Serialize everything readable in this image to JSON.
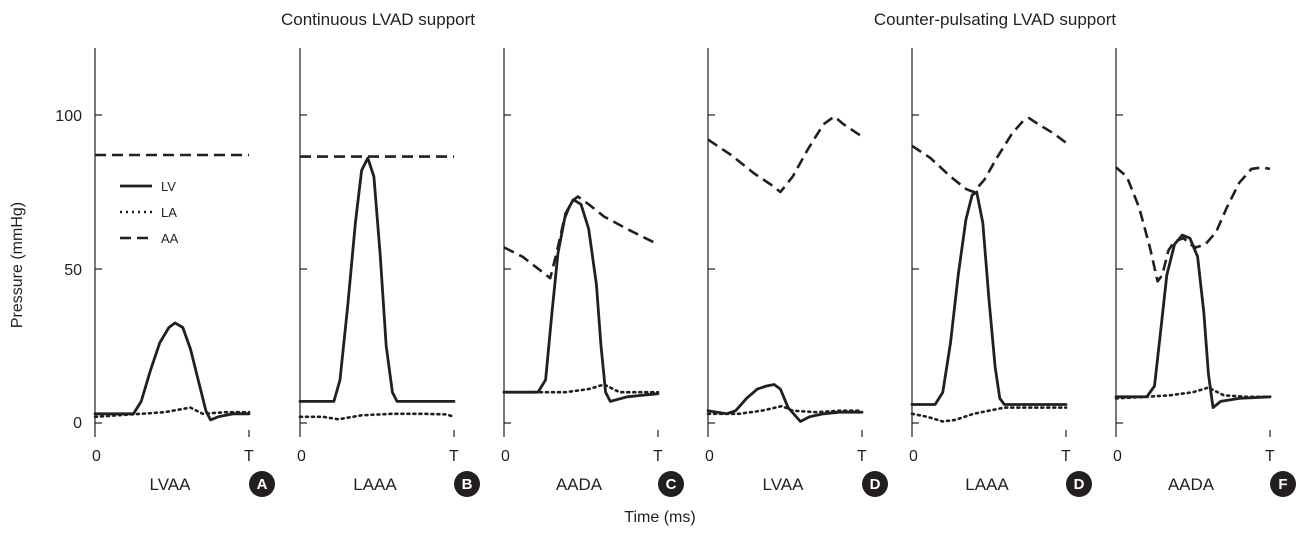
{
  "figure": {
    "group_titles": [
      "Continuous LVAD support",
      "Counter-pulsating LVAD support"
    ],
    "y_axis_title": "Pressure (mmHg)",
    "x_axis_title": "Time (ms)",
    "y_tick_labels": [
      "0",
      "50",
      "100"
    ],
    "x_tick_start": "0",
    "x_tick_end": "T",
    "legend": [
      {
        "label": "LV",
        "style": "solid"
      },
      {
        "label": "LA",
        "style": "dotted"
      },
      {
        "label": "AA",
        "style": "dashed"
      }
    ],
    "colors": {
      "line": "#231f20",
      "badge": "#231f20"
    }
  },
  "chart_data": [
    {
      "type": "line",
      "panel": "LVAA",
      "badge": "A",
      "ylim": [
        0,
        120
      ],
      "xlim": [
        0,
        1
      ],
      "ylabel": "Pressure (mmHg)",
      "xlabel": "",
      "series": [
        {
          "name": "LV",
          "style": "solid",
          "points": [
            [
              0,
              3
            ],
            [
              0.25,
              3
            ],
            [
              0.3,
              7
            ],
            [
              0.36,
              17
            ],
            [
              0.42,
              26
            ],
            [
              0.48,
              31
            ],
            [
              0.52,
              32.5
            ],
            [
              0.57,
              31
            ],
            [
              0.62,
              24
            ],
            [
              0.68,
              12
            ],
            [
              0.72,
              4
            ],
            [
              0.75,
              1
            ],
            [
              0.8,
              2
            ],
            [
              0.9,
              3
            ],
            [
              1,
              3
            ]
          ]
        },
        {
          "name": "LA",
          "style": "dotted",
          "points": [
            [
              0,
              2
            ],
            [
              0.3,
              3
            ],
            [
              0.45,
              3.5
            ],
            [
              0.62,
              5
            ],
            [
              0.7,
              3
            ],
            [
              0.85,
              3.5
            ],
            [
              1,
              3.5
            ]
          ]
        },
        {
          "name": "AA",
          "style": "dashed",
          "points": [
            [
              0,
              87
            ],
            [
              1,
              87
            ]
          ]
        }
      ]
    },
    {
      "type": "line",
      "panel": "LAAA",
      "badge": "B",
      "ylim": [
        0,
        120
      ],
      "xlim": [
        0,
        1
      ],
      "ylabel": "",
      "xlabel": "",
      "series": [
        {
          "name": "LV",
          "style": "solid",
          "points": [
            [
              0,
              7
            ],
            [
              0.22,
              7
            ],
            [
              0.26,
              14
            ],
            [
              0.31,
              38
            ],
            [
              0.36,
              65
            ],
            [
              0.4,
              82
            ],
            [
              0.44,
              86
            ],
            [
              0.48,
              80
            ],
            [
              0.52,
              55
            ],
            [
              0.56,
              25
            ],
            [
              0.6,
              10
            ],
            [
              0.63,
              7
            ],
            [
              0.8,
              7
            ],
            [
              1,
              7
            ]
          ]
        },
        {
          "name": "LA",
          "style": "dotted",
          "points": [
            [
              0,
              2
            ],
            [
              0.15,
              2
            ],
            [
              0.25,
              1.2
            ],
            [
              0.4,
              2.5
            ],
            [
              0.6,
              3
            ],
            [
              0.8,
              3
            ],
            [
              0.95,
              2.8
            ],
            [
              1,
              2
            ]
          ]
        },
        {
          "name": "AA",
          "style": "dashed",
          "points": [
            [
              0,
              86.5
            ],
            [
              1,
              86.5
            ]
          ]
        }
      ]
    },
    {
      "type": "line",
      "panel": "AADA",
      "badge": "C",
      "ylim": [
        0,
        120
      ],
      "xlim": [
        0,
        1
      ],
      "ylabel": "",
      "xlabel": "",
      "series": [
        {
          "name": "LV",
          "style": "solid",
          "points": [
            [
              0,
              10
            ],
            [
              0.22,
              10
            ],
            [
              0.27,
              14
            ],
            [
              0.31,
              35
            ],
            [
              0.35,
              55
            ],
            [
              0.4,
              68
            ],
            [
              0.45,
              72.5
            ],
            [
              0.5,
              71
            ],
            [
              0.55,
              63
            ],
            [
              0.6,
              45
            ],
            [
              0.63,
              25
            ],
            [
              0.66,
              10
            ],
            [
              0.69,
              7
            ],
            [
              0.8,
              8.5
            ],
            [
              1,
              9.5
            ]
          ]
        },
        {
          "name": "LA",
          "style": "dotted",
          "points": [
            [
              0,
              10
            ],
            [
              0.25,
              10
            ],
            [
              0.4,
              10
            ],
            [
              0.55,
              11
            ],
            [
              0.65,
              12.5
            ],
            [
              0.75,
              10
            ],
            [
              0.85,
              10
            ],
            [
              1,
              10
            ]
          ]
        },
        {
          "name": "AA",
          "style": "dashed",
          "points": [
            [
              0,
              57
            ],
            [
              0.12,
              54
            ],
            [
              0.25,
              49
            ],
            [
              0.3,
              47
            ],
            [
              0.34,
              55
            ],
            [
              0.39,
              66
            ],
            [
              0.44,
              72
            ],
            [
              0.48,
              73.5
            ],
            [
              0.55,
              71
            ],
            [
              0.65,
              67
            ],
            [
              0.8,
              63
            ],
            [
              1,
              58
            ]
          ]
        }
      ]
    },
    {
      "type": "line",
      "panel": "LVAA",
      "badge": "D",
      "ylim": [
        0,
        120
      ],
      "xlim": [
        0,
        1
      ],
      "ylabel": "",
      "xlabel": "",
      "series": [
        {
          "name": "LV",
          "style": "solid",
          "points": [
            [
              0,
              4
            ],
            [
              0.12,
              3
            ],
            [
              0.18,
              4
            ],
            [
              0.25,
              8
            ],
            [
              0.32,
              11
            ],
            [
              0.38,
              12
            ],
            [
              0.43,
              12.5
            ],
            [
              0.47,
              11
            ],
            [
              0.52,
              5
            ],
            [
              0.6,
              0.5
            ],
            [
              0.66,
              2
            ],
            [
              0.75,
              3
            ],
            [
              0.85,
              3.5
            ],
            [
              1,
              3.5
            ]
          ]
        },
        {
          "name": "LA",
          "style": "dotted",
          "points": [
            [
              0,
              3
            ],
            [
              0.2,
              3
            ],
            [
              0.35,
              4
            ],
            [
              0.48,
              5.5
            ],
            [
              0.55,
              4
            ],
            [
              0.7,
              3.5
            ],
            [
              0.85,
              4
            ],
            [
              1,
              4
            ]
          ]
        },
        {
          "name": "AA",
          "style": "dashed",
          "points": [
            [
              0,
              92
            ],
            [
              0.15,
              87
            ],
            [
              0.3,
              81
            ],
            [
              0.42,
              77
            ],
            [
              0.47,
              75
            ],
            [
              0.55,
              80
            ],
            [
              0.65,
              89
            ],
            [
              0.75,
              97
            ],
            [
              0.82,
              99.5
            ],
            [
              0.88,
              97
            ],
            [
              1,
              93
            ]
          ]
        }
      ]
    },
    {
      "type": "line",
      "panel": "LAAA",
      "badge": "D",
      "ylim": [
        0,
        120
      ],
      "xlim": [
        0,
        1
      ],
      "ylabel": "",
      "xlabel": "",
      "series": [
        {
          "name": "LV",
          "style": "solid",
          "points": [
            [
              0,
              6
            ],
            [
              0.15,
              6
            ],
            [
              0.2,
              10
            ],
            [
              0.25,
              26
            ],
            [
              0.3,
              48
            ],
            [
              0.35,
              66
            ],
            [
              0.39,
              74
            ],
            [
              0.42,
              75
            ],
            [
              0.46,
              65
            ],
            [
              0.5,
              40
            ],
            [
              0.54,
              18
            ],
            [
              0.57,
              8
            ],
            [
              0.6,
              6
            ],
            [
              0.8,
              6
            ],
            [
              1,
              6
            ]
          ]
        },
        {
          "name": "LA",
          "style": "dotted",
          "points": [
            [
              0,
              3
            ],
            [
              0.1,
              2
            ],
            [
              0.2,
              0.5
            ],
            [
              0.28,
              1
            ],
            [
              0.4,
              3
            ],
            [
              0.5,
              4
            ],
            [
              0.6,
              5
            ],
            [
              0.8,
              5
            ],
            [
              1,
              5
            ]
          ]
        },
        {
          "name": "AA",
          "style": "dashed",
          "points": [
            [
              0,
              90
            ],
            [
              0.12,
              86
            ],
            [
              0.25,
              80
            ],
            [
              0.35,
              76
            ],
            [
              0.4,
              75
            ],
            [
              0.47,
              79
            ],
            [
              0.55,
              86
            ],
            [
              0.65,
              94
            ],
            [
              0.72,
              98
            ],
            [
              0.76,
              99
            ],
            [
              0.82,
              97
            ],
            [
              0.92,
              94
            ],
            [
              1,
              91
            ]
          ]
        }
      ]
    },
    {
      "type": "line",
      "panel": "AADA",
      "badge": "F",
      "ylim": [
        0,
        120
      ],
      "xlim": [
        0,
        1
      ],
      "ylabel": "",
      "xlabel": "",
      "series": [
        {
          "name": "LV",
          "style": "solid",
          "points": [
            [
              0,
              8.5
            ],
            [
              0.2,
              8.5
            ],
            [
              0.25,
              12
            ],
            [
              0.29,
              30
            ],
            [
              0.33,
              48
            ],
            [
              0.38,
              58
            ],
            [
              0.43,
              61
            ],
            [
              0.48,
              60
            ],
            [
              0.53,
              54
            ],
            [
              0.57,
              36
            ],
            [
              0.6,
              16
            ],
            [
              0.63,
              5
            ],
            [
              0.68,
              7
            ],
            [
              0.8,
              8
            ],
            [
              1,
              8.5
            ]
          ]
        },
        {
          "name": "LA",
          "style": "dotted",
          "points": [
            [
              0,
              8
            ],
            [
              0.2,
              8.5
            ],
            [
              0.35,
              9
            ],
            [
              0.5,
              10
            ],
            [
              0.6,
              11.5
            ],
            [
              0.7,
              9
            ],
            [
              0.85,
              8.5
            ],
            [
              1,
              8.5
            ]
          ]
        },
        {
          "name": "AA",
          "style": "dashed",
          "points": [
            [
              0,
              83
            ],
            [
              0.07,
              80
            ],
            [
              0.15,
              70
            ],
            [
              0.22,
              57
            ],
            [
              0.27,
              46
            ],
            [
              0.3,
              48
            ],
            [
              0.34,
              56
            ],
            [
              0.38,
              59
            ],
            [
              0.44,
              60
            ],
            [
              0.48,
              58
            ],
            [
              0.52,
              57
            ],
            [
              0.58,
              58
            ],
            [
              0.65,
              62
            ],
            [
              0.72,
              70
            ],
            [
              0.8,
              78
            ],
            [
              0.88,
              82.5
            ],
            [
              0.95,
              83
            ],
            [
              1,
              82.5
            ]
          ]
        }
      ]
    }
  ]
}
